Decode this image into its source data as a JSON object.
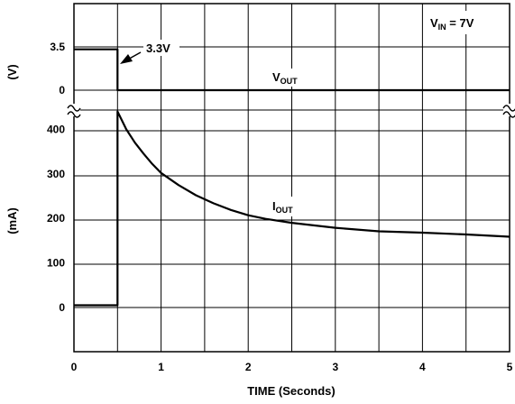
{
  "chart_data": {
    "type": "line",
    "title": "",
    "xlabel": "TIME (Seconds)",
    "xlim": [
      0,
      5
    ],
    "x_ticks": [
      "0",
      "1",
      "2",
      "3",
      "4",
      "5"
    ],
    "grid": true,
    "upper_axis": {
      "ylabel": "(V)",
      "y_ticks": [
        "3.5",
        "0"
      ]
    },
    "lower_axis": {
      "ylabel": "(mA)",
      "ylim": [
        -100,
        450
      ],
      "y_ticks": [
        "400",
        "300",
        "200",
        "100",
        "0"
      ]
    },
    "annotations": {
      "vin_main": "V",
      "vin_sub": "IN",
      "vin_rest": " = 7V",
      "level": "3.3V",
      "vout_main": "V",
      "vout_sub": "OUT",
      "iout_main": "I",
      "iout_sub": "OUT"
    },
    "series": [
      {
        "name": "VOUT",
        "axis": "upper",
        "unit": "V",
        "x": [
          0,
          0.5,
          0.5,
          5
        ],
        "y": [
          3.3,
          3.3,
          0,
          0
        ]
      },
      {
        "name": "IOUT",
        "axis": "lower",
        "unit": "mA",
        "x": [
          0,
          0.5,
          0.5,
          0.6,
          0.7,
          0.8,
          0.9,
          1.0,
          1.2,
          1.4,
          1.6,
          1.8,
          2.0,
          2.2,
          2.5,
          3.0,
          3.5,
          4.0,
          4.5,
          5.0
        ],
        "y": [
          5,
          5,
          440,
          400,
          370,
          345,
          322,
          302,
          275,
          252,
          234,
          219,
          207,
          199,
          190,
          179,
          171,
          168,
          164,
          159
        ]
      }
    ]
  }
}
